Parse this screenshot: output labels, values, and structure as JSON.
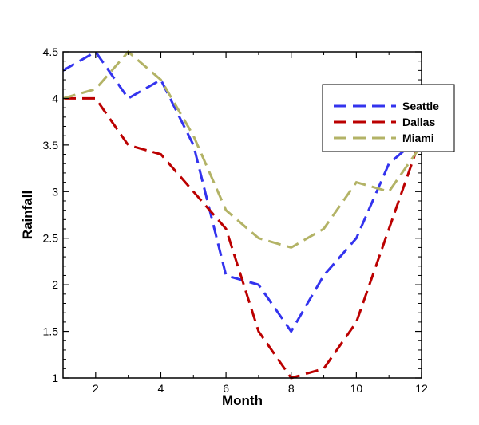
{
  "chart_data": {
    "type": "line",
    "xlabel": "Month",
    "ylabel": "Rainfall",
    "xlim": [
      1,
      12
    ],
    "ylim": [
      1,
      4.5
    ],
    "xticks": [
      2,
      4,
      6,
      8,
      10,
      12
    ],
    "yticks": [
      1,
      1.5,
      2,
      2.5,
      3,
      3.5,
      4,
      4.5
    ],
    "xtick_labels": [
      "2",
      "4",
      "6",
      "8",
      "10",
      "12"
    ],
    "ytick_labels": [
      "1",
      "1.5",
      "2",
      "2.5",
      "3",
      "3.5",
      "4",
      "4.5"
    ],
    "grid": false,
    "legend_position": "top-right",
    "x": [
      1,
      2,
      3,
      4,
      5,
      6,
      7,
      8,
      9,
      10,
      11,
      12
    ],
    "series": [
      {
        "name": "Seattle",
        "color": "#3333ee",
        "values": [
          4.3,
          4.5,
          4.0,
          4.2,
          3.5,
          2.1,
          2.0,
          1.5,
          2.1,
          2.5,
          3.3,
          3.6
        ]
      },
      {
        "name": "Dallas",
        "color": "#bb0000",
        "values": [
          4.0,
          4.0,
          3.5,
          3.4,
          3.0,
          2.6,
          1.5,
          1.0,
          1.1,
          1.6,
          2.6,
          3.6
        ]
      },
      {
        "name": "Miami",
        "color": "#b3b366",
        "values": [
          4.0,
          4.1,
          4.5,
          4.2,
          3.6,
          2.8,
          2.5,
          2.4,
          2.6,
          3.1,
          3.0,
          3.5
        ]
      }
    ]
  }
}
